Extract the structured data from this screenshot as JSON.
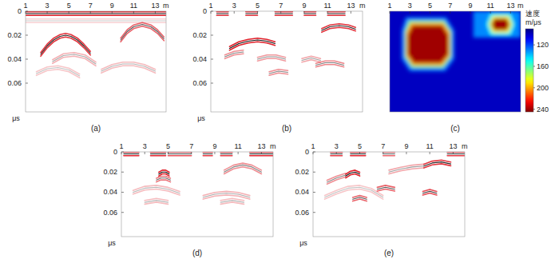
{
  "chart_data": [
    {
      "type": "radargram",
      "title": "(a)",
      "xlabel": "m",
      "ylabel": "μs",
      "xlim": [
        1,
        14
      ],
      "ylim": [
        0,
        0.084
      ],
      "xticks": [
        1,
        3,
        5,
        7,
        9,
        11,
        13
      ],
      "yticks": [
        0,
        0.02,
        0.04,
        0.06
      ],
      "events": [
        {
          "x": [
            1,
            14
          ],
          "t": [
            0.002,
            0.002
          ],
          "amplitude": 1
        },
        {
          "x": [
            1,
            14
          ],
          "t": [
            0.008,
            0.008
          ],
          "amplitude": 0.2
        },
        {
          "x": [
            2.4,
            3.0,
            3.6,
            4.2,
            4.7,
            5.2,
            5.8,
            6.4,
            7.0
          ],
          "t": [
            0.036,
            0.029,
            0.024,
            0.021,
            0.02,
            0.021,
            0.024,
            0.029,
            0.035
          ],
          "amplitude": 0.9
        },
        {
          "x": [
            9.8,
            10.4,
            11.0,
            11.8,
            12.6,
            13.2,
            13.8
          ],
          "t": [
            0.024,
            0.017,
            0.013,
            0.011,
            0.013,
            0.017,
            0.023
          ],
          "amplitude": 0.7
        },
        {
          "x": [
            3.5,
            4.5,
            5.5,
            6.5,
            7.5
          ],
          "t": [
            0.042,
            0.037,
            0.036,
            0.038,
            0.044
          ],
          "amplitude": 0.35
        },
        {
          "x": [
            8,
            9,
            10,
            11,
            12,
            13
          ],
          "t": [
            0.05,
            0.046,
            0.044,
            0.044,
            0.046,
            0.05
          ],
          "amplitude": 0.3
        },
        {
          "x": [
            2,
            3,
            4,
            5,
            6
          ],
          "t": [
            0.052,
            0.048,
            0.047,
            0.049,
            0.054
          ],
          "amplitude": 0.25
        }
      ]
    },
    {
      "type": "radargram",
      "title": "(b)",
      "xlabel": "m",
      "ylabel": "μs",
      "xlim": [
        1,
        14
      ],
      "ylim": [
        0,
        0.084
      ],
      "xticks": [
        1,
        3,
        5,
        7,
        9,
        11,
        13
      ],
      "yticks": [
        0,
        0.02,
        0.04,
        0.06
      ],
      "events": [
        {
          "x": [
            1.5,
            2.5
          ],
          "t": [
            0.002,
            0.002
          ],
          "amplitude": 0.9
        },
        {
          "x": [
            4,
            5
          ],
          "t": [
            0.002,
            0.002
          ],
          "amplitude": 0.9
        },
        {
          "x": [
            6.5,
            8
          ],
          "t": [
            0.002,
            0.002
          ],
          "amplitude": 0.9
        },
        {
          "x": [
            9,
            10
          ],
          "t": [
            0.002,
            0.002
          ],
          "amplitude": 0.9
        },
        {
          "x": [
            11,
            12.5
          ],
          "t": [
            0.002,
            0.002
          ],
          "amplitude": 0.9
        },
        {
          "x": [
            2.6,
            3.4,
            4.2,
            5.0,
            5.8,
            6.5
          ],
          "t": [
            0.031,
            0.027,
            0.025,
            0.024,
            0.025,
            0.027
          ],
          "amplitude": 1
        },
        {
          "x": [
            2.2,
            3,
            3.8
          ],
          "t": [
            0.038,
            0.035,
            0.034
          ],
          "amplitude": 0.5
        },
        {
          "x": [
            10.5,
            11.2,
            12,
            12.8,
            13.4
          ],
          "t": [
            0.016,
            0.013,
            0.012,
            0.013,
            0.015
          ],
          "amplitude": 0.9
        },
        {
          "x": [
            5,
            5.8,
            6.6,
            7.4
          ],
          "t": [
            0.04,
            0.038,
            0.038,
            0.04
          ],
          "amplitude": 0.45
        },
        {
          "x": [
            10,
            10.8,
            11.6,
            12.4
          ],
          "t": [
            0.045,
            0.043,
            0.043,
            0.045
          ],
          "amplitude": 0.55
        },
        {
          "x": [
            6,
            6.8,
            7.6
          ],
          "t": [
            0.052,
            0.05,
            0.051
          ],
          "amplitude": 0.5
        },
        {
          "x": [
            8.8,
            9.6,
            10.4
          ],
          "t": [
            0.041,
            0.039,
            0.041
          ],
          "amplitude": 0.4
        }
      ]
    },
    {
      "type": "heatmap",
      "title": "(c)",
      "xlabel": "m",
      "tick_labels": "x",
      "xlim": [
        1,
        14
      ],
      "ylim": [
        0,
        0.084
      ],
      "xticks": [
        1,
        3,
        5,
        7,
        9,
        11,
        13
      ],
      "colorbar_title": "速度",
      "colorbar_unit": "m/μs",
      "colorbar": {
        "lim": [
          90,
          245
        ],
        "ticks": [
          120,
          160,
          200,
          240
        ]
      },
      "background": 100,
      "regions": [
        {
          "value": 130,
          "points": [
            [
              9.3,
              0
            ],
            [
              14,
              0
            ],
            [
              14,
              0.022
            ],
            [
              9.3,
              0.022
            ]
          ]
        },
        {
          "value": 130,
          "points": [
            [
              2.6,
              0.005
            ],
            [
              6.6,
              0.005
            ],
            [
              7.4,
              0.016
            ],
            [
              7.4,
              0.04
            ],
            [
              6.5,
              0.05
            ],
            [
              3.0,
              0.05
            ],
            [
              2.2,
              0.04
            ],
            [
              2.2,
              0.016
            ]
          ]
        },
        {
          "value": 170,
          "points": [
            [
              2.9,
              0.008
            ],
            [
              6.4,
              0.008
            ],
            [
              7.1,
              0.017
            ],
            [
              7.1,
              0.038
            ],
            [
              6.3,
              0.047
            ],
            [
              3.2,
              0.047
            ],
            [
              2.5,
              0.038
            ],
            [
              2.5,
              0.017
            ]
          ]
        },
        {
          "value": 205,
          "points": [
            [
              3.1,
              0.01
            ],
            [
              6.3,
              0.01
            ],
            [
              6.95,
              0.018
            ],
            [
              6.95,
              0.037
            ],
            [
              6.2,
              0.045
            ],
            [
              3.3,
              0.045
            ],
            [
              2.65,
              0.037
            ],
            [
              2.65,
              0.018
            ]
          ]
        },
        {
          "value": 240,
          "points": [
            [
              3.3,
              0.012
            ],
            [
              6.2,
              0.012
            ],
            [
              6.8,
              0.02
            ],
            [
              6.8,
              0.036
            ],
            [
              6.1,
              0.043
            ],
            [
              3.4,
              0.043
            ],
            [
              2.8,
              0.036
            ],
            [
              2.8,
              0.02
            ]
          ]
        },
        {
          "value": 150,
          "points": [
            [
              11,
              0.002
            ],
            [
              13,
              0.002
            ],
            [
              13.4,
              0.011
            ],
            [
              13,
              0.02
            ],
            [
              11,
              0.02
            ],
            [
              10.6,
              0.011
            ]
          ]
        },
        {
          "value": 190,
          "points": [
            [
              11.2,
              0.004
            ],
            [
              12.8,
              0.004
            ],
            [
              13.15,
              0.011
            ],
            [
              12.8,
              0.018
            ],
            [
              11.2,
              0.018
            ],
            [
              10.85,
              0.011
            ]
          ]
        },
        {
          "value": 240,
          "points": [
            [
              11.4,
              0.006
            ],
            [
              12.6,
              0.006
            ],
            [
              12.9,
              0.011
            ],
            [
              12.6,
              0.016
            ],
            [
              11.4,
              0.016
            ],
            [
              11.1,
              0.011
            ]
          ]
        }
      ]
    },
    {
      "type": "radargram",
      "title": "(d)",
      "xlabel": "m",
      "ylabel": "μs",
      "xlim": [
        1,
        14
      ],
      "ylim": [
        0,
        0.084
      ],
      "xticks": [
        1,
        3,
        5,
        7,
        9,
        11,
        13
      ],
      "yticks": [
        0,
        0.02,
        0.04,
        0.06
      ],
      "events": [
        {
          "x": [
            1.2,
            2.5
          ],
          "t": [
            0.002,
            0.002
          ],
          "amplitude": 1
        },
        {
          "x": [
            3.5,
            4.8
          ],
          "t": [
            0.002,
            0.002
          ],
          "amplitude": 1
        },
        {
          "x": [
            5,
            7
          ],
          "t": [
            0.002,
            0.002
          ],
          "amplitude": 0.8
        },
        {
          "x": [
            8,
            8.8
          ],
          "t": [
            0.002,
            0.002
          ],
          "amplitude": 0.9
        },
        {
          "x": [
            9.5,
            10.5
          ],
          "t": [
            0.002,
            0.002
          ],
          "amplitude": 0.9
        },
        {
          "x": [
            12,
            14
          ],
          "t": [
            0.002,
            0.002
          ],
          "amplitude": 1
        },
        {
          "x": [
            4.2,
            4.5,
            4.8,
            5.1
          ],
          "t": [
            0.022,
            0.02,
            0.02,
            0.022
          ],
          "amplitude": 1
        },
        {
          "x": [
            4,
            4.4,
            4.8,
            5.2
          ],
          "t": [
            0.028,
            0.026,
            0.026,
            0.028
          ],
          "amplitude": 0.6
        },
        {
          "x": [
            9.8,
            10.6,
            11.4,
            12.2,
            13
          ],
          "t": [
            0.02,
            0.015,
            0.013,
            0.015,
            0.02
          ],
          "amplitude": 0.5
        },
        {
          "x": [
            2,
            3,
            4,
            5,
            6
          ],
          "t": [
            0.04,
            0.036,
            0.035,
            0.037,
            0.041
          ],
          "amplitude": 0.3
        },
        {
          "x": [
            8,
            9,
            10,
            11,
            12
          ],
          "t": [
            0.045,
            0.042,
            0.041,
            0.042,
            0.045
          ],
          "amplitude": 0.35
        },
        {
          "x": [
            3,
            4,
            5
          ],
          "t": [
            0.05,
            0.048,
            0.05
          ],
          "amplitude": 0.3
        },
        {
          "x": [
            9.5,
            10.5,
            11.5
          ],
          "t": [
            0.05,
            0.048,
            0.05
          ],
          "amplitude": 0.3
        }
      ]
    },
    {
      "type": "radargram",
      "title": "(e)",
      "xlabel": "m",
      "ylabel": "μs",
      "xlim": [
        1,
        14
      ],
      "ylim": [
        0,
        0.084
      ],
      "xticks": [
        1,
        3,
        5,
        7,
        9,
        11,
        13
      ],
      "yticks": [
        0,
        0.02,
        0.04,
        0.06
      ],
      "events": [
        {
          "x": [
            2.5,
            3.5
          ],
          "t": [
            0.002,
            0.002
          ],
          "amplitude": 0.9
        },
        {
          "x": [
            4.2,
            5.5
          ],
          "t": [
            0.002,
            0.002
          ],
          "amplitude": 1
        },
        {
          "x": [
            7,
            8
          ],
          "t": [
            0.002,
            0.002
          ],
          "amplitude": 0.7
        },
        {
          "x": [
            12.5,
            14
          ],
          "t": [
            0.002,
            0.002
          ],
          "amplitude": 0.9
        },
        {
          "x": [
            3.8,
            4.2,
            4.6,
            5.0
          ],
          "t": [
            0.024,
            0.021,
            0.02,
            0.022
          ],
          "amplitude": 1
        },
        {
          "x": [
            2.2,
            3,
            3.8
          ],
          "t": [
            0.03,
            0.026,
            0.023
          ],
          "amplitude": 0.5
        },
        {
          "x": [
            10.5,
            11.2,
            12,
            12.8
          ],
          "t": [
            0.014,
            0.011,
            0.01,
            0.012
          ],
          "amplitude": 0.9
        },
        {
          "x": [
            7.5,
            8.5,
            9.5,
            10.5
          ],
          "t": [
            0.02,
            0.017,
            0.015,
            0.014
          ],
          "amplitude": 0.4
        },
        {
          "x": [
            6.5,
            7.2,
            8
          ],
          "t": [
            0.037,
            0.035,
            0.037
          ],
          "amplitude": 0.7
        },
        {
          "x": [
            10.4,
            11,
            11.6
          ],
          "t": [
            0.041,
            0.039,
            0.041
          ],
          "amplitude": 0.8
        },
        {
          "x": [
            4.4,
            5,
            5.6
          ],
          "t": [
            0.047,
            0.045,
            0.047
          ],
          "amplitude": 0.7
        },
        {
          "x": [
            2,
            3,
            4,
            5,
            6,
            7
          ],
          "t": [
            0.045,
            0.04,
            0.036,
            0.035,
            0.038,
            0.045
          ],
          "amplitude": 0.25
        }
      ]
    }
  ]
}
